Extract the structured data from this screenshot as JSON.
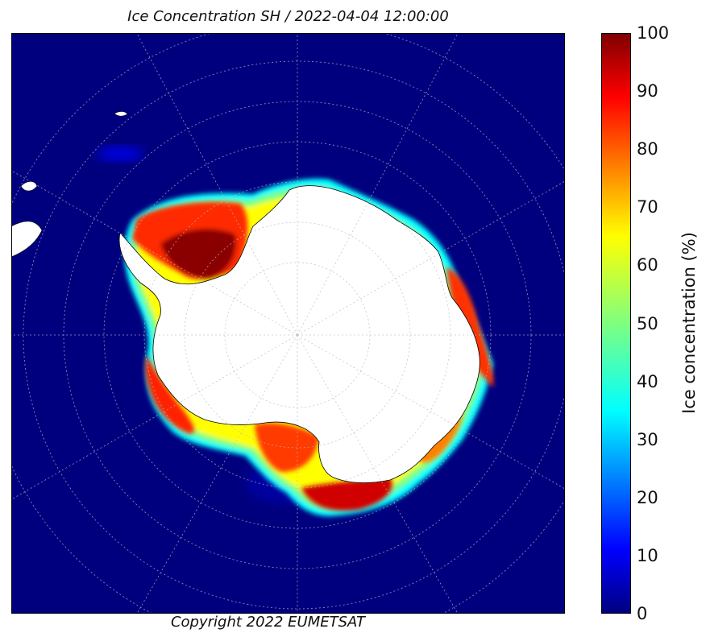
{
  "title": "Ice Concentration SH / 2022-04-04 12:00:00",
  "copyright": "Copyright 2022 EUMETSAT",
  "colorbar": {
    "label": "Ice concentration (%)",
    "ticks": [
      "100",
      "90",
      "80",
      "70",
      "60",
      "50",
      "40",
      "30",
      "20",
      "10",
      "0"
    ],
    "range": [
      0,
      100
    ],
    "colormap": "jet",
    "colors": [
      "#00007f",
      "#0000ff",
      "#007fff",
      "#00ffff",
      "#7fff7f",
      "#ffff00",
      "#ff7f00",
      "#ff0000",
      "#7f0000"
    ]
  },
  "map": {
    "projection": "south-polar-stereographic",
    "ocean_color": "#00007f",
    "land_color": "#ffffff",
    "graticule": "dotted"
  }
}
